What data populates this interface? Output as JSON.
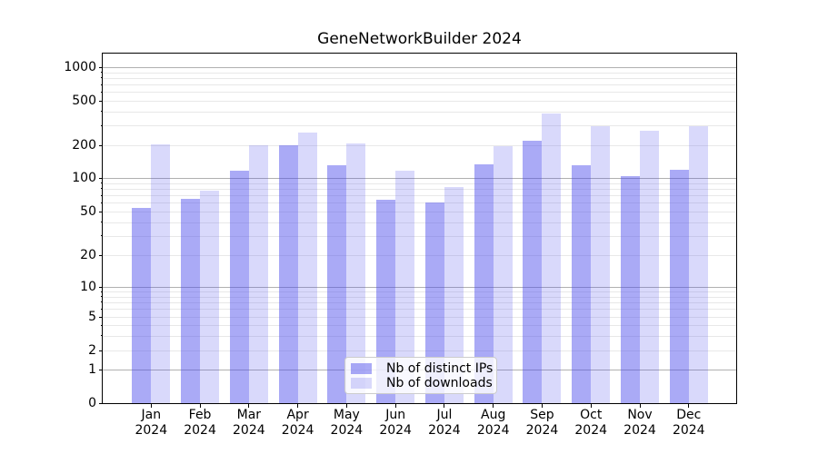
{
  "title": "GeneNetworkBuilder 2024",
  "legend": {
    "items": [
      {
        "label": "Nb of distinct IPs",
        "series_key": "distinct_ips"
      },
      {
        "label": "Nb of downloads",
        "series_key": "downloads"
      }
    ]
  },
  "y_axis": {
    "ticks": [
      "1000",
      "500",
      "200",
      "100",
      "50",
      "20",
      "10",
      "5",
      "2",
      "1",
      "0"
    ]
  },
  "x_axis": {
    "tick_line1": [
      "Jan",
      "Feb",
      "Mar",
      "Apr",
      "May",
      "Jun",
      "Jul",
      "Aug",
      "Sep",
      "Oct",
      "Nov",
      "Dec"
    ],
    "tick_line2": [
      "2024",
      "2024",
      "2024",
      "2024",
      "2024",
      "2024",
      "2024",
      "2024",
      "2024",
      "2024",
      "2024",
      "2024"
    ]
  },
  "chart_data": {
    "type": "bar",
    "title": "GeneNetworkBuilder 2024",
    "categories": [
      "Jan 2024",
      "Feb 2024",
      "Mar 2024",
      "Apr 2024",
      "May 2024",
      "Jun 2024",
      "Jul 2024",
      "Aug 2024",
      "Sep 2024",
      "Oct 2024",
      "Nov 2024",
      "Dec 2024"
    ],
    "series": [
      {
        "name": "Nb of distinct IPs",
        "color": "rgba(75,75,235,0.47)",
        "solid_color_hex": "#aaaaf4",
        "values": [
          54,
          65,
          117,
          201,
          131,
          64,
          60,
          134,
          218,
          132,
          104,
          118
        ]
      },
      {
        "name": "Nb of downloads",
        "color": "rgba(75,75,235,0.21)",
        "solid_color_hex": "#d9d9fa",
        "values": [
          205,
          77,
          199,
          260,
          206,
          117,
          83,
          196,
          385,
          295,
          270,
          295
        ]
      }
    ],
    "yscale": "log-like (labeled ticks 0,1,2,5,10,20,50,100,200,500,1000)",
    "ylim": [
      0,
      1300
    ],
    "xlabel": "",
    "ylabel": "",
    "grid": true,
    "grid_major_color": "#b0b0b0",
    "grid_minor_color": "#e8e8e8",
    "legend_position": "lower center"
  }
}
